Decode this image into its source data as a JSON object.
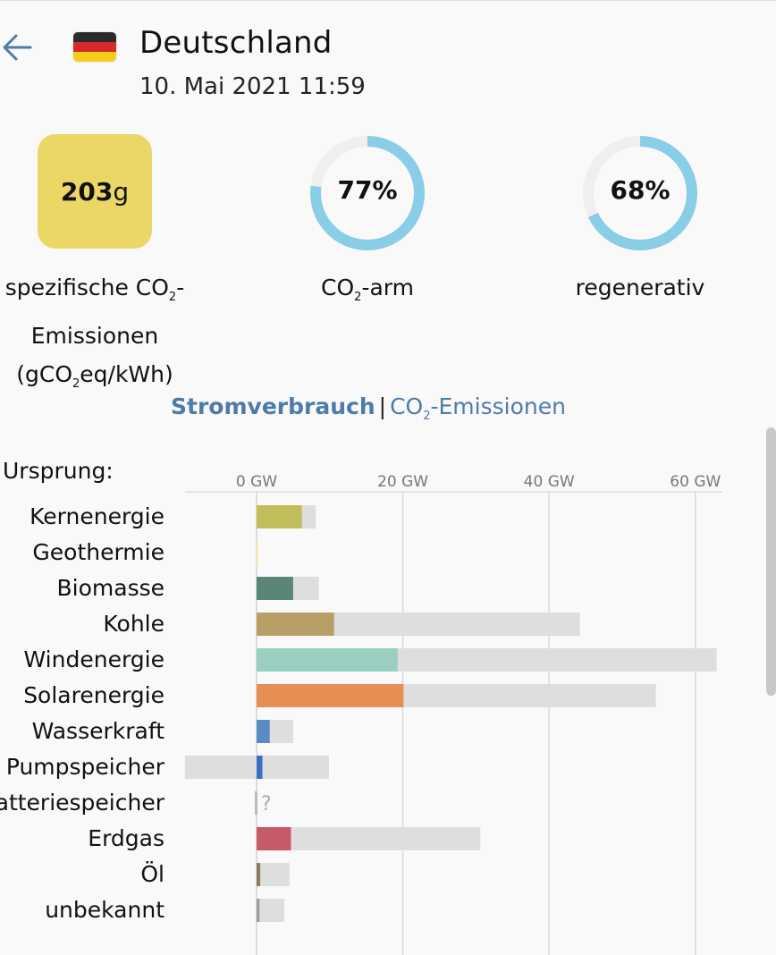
{
  "header": {
    "title": "Deutschland",
    "datetime": "10. Mai 2021 11:59",
    "flag_colors": [
      "#2b2b2b",
      "#d52a2a",
      "#f4cc1c"
    ]
  },
  "stats": {
    "co2_value": "203",
    "co2_unit": "g",
    "co2_box_color": "#ebd766",
    "co2_label_line1_a": "spezifische CO",
    "co2_label_line1_sub": "2",
    "co2_label_line1_b": "-",
    "co2_label_line2": "Emissionen",
    "co2_label_line3_a": "(gCO",
    "co2_label_line3_sub": "2",
    "co2_label_line3_b": "eq/kWh)",
    "low_carbon_text": "77%",
    "low_carbon_fraction": 0.77,
    "low_carbon_label_a": "CO",
    "low_carbon_label_sub": "2",
    "low_carbon_label_b": "-arm",
    "renewable_text": "68%",
    "renewable_fraction": 0.68,
    "renewable_label": "regenerativ",
    "ring_color": "#89cde6",
    "ring_track_color": "#efefef"
  },
  "toggle": {
    "active": "Stromverbrauch",
    "separator": "|",
    "inactive_a": "CO",
    "inactive_sub": "2",
    "inactive_b": "-Emissionen"
  },
  "origin_label": "Ursprung:",
  "chart_data": {
    "type": "bar",
    "orientation": "horizontal",
    "x_unit": "GW",
    "x_ticks": [
      "0 GW",
      "20 GW",
      "40 GW",
      "60 GW"
    ],
    "x_tick_values": [
      0,
      20,
      40,
      60
    ],
    "xlim": [
      -10,
      63
    ],
    "capacity_color": "#dedede",
    "categories": [
      "Kernenergie",
      "Geothermie",
      "Biomasse",
      "Kohle",
      "Windenergie",
      "Solarenergie",
      "Wasserkraft",
      "Pumpspeicher",
      "Batteriespeicher",
      "Erdgas",
      "Öl",
      "unbekannt"
    ],
    "series": [
      {
        "values": [
          6.2,
          0.02,
          5.0,
          10.6,
          19.3,
          20.1,
          1.8,
          0.8,
          0,
          4.7,
          0.5,
          0.4
        ]
      },
      {
        "values": [
          8.1,
          0.04,
          8.5,
          44.2,
          62.9,
          54.6,
          5.0,
          9.9,
          0,
          30.6,
          4.5,
          3.8
        ],
        "min_values": [
          0,
          0,
          0,
          0,
          0,
          0,
          0,
          -9.8,
          0,
          0,
          0,
          0
        ]
      }
    ],
    "colors": [
      "#bfbe5a",
      "#f5ecaa",
      "#5a8578",
      "#b89f66",
      "#99cfc0",
      "#e68f52",
      "#5a8bc4",
      "#3a6fc4",
      "#bbbbbb",
      "#c65a6b",
      "#8f7a62",
      "#9c9c9c"
    ],
    "unknown_marker": "?"
  }
}
